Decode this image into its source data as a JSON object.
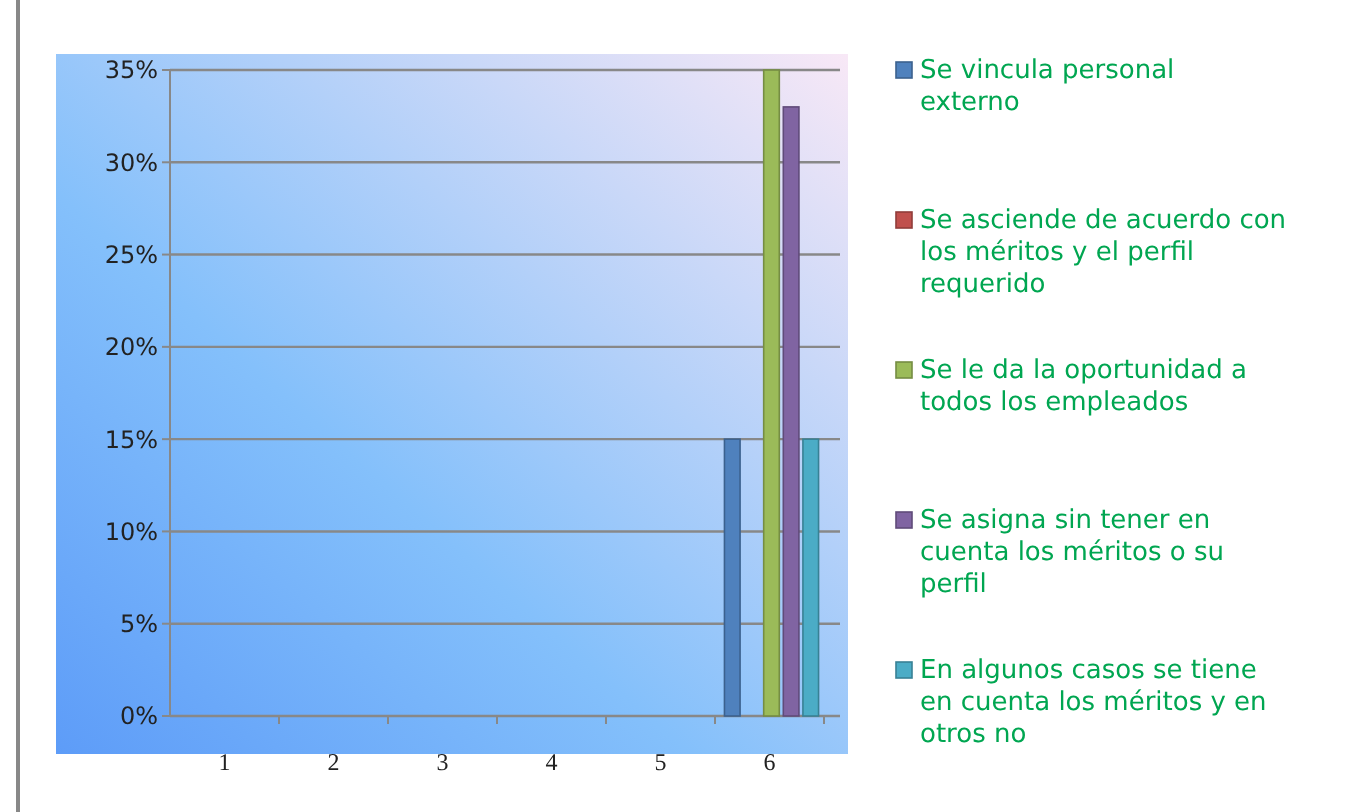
{
  "chart_data": {
    "type": "bar",
    "categories": [
      "1",
      "2",
      "3",
      "4",
      "5",
      "6"
    ],
    "series": [
      {
        "name": "Se vincula personal externo",
        "color": "#4f81bd",
        "values": [
          null,
          null,
          null,
          null,
          null,
          15
        ]
      },
      {
        "name": "Se asciende de acuerdo con los méritos y el perfil requerido",
        "color": "#c0504d",
        "values": [
          null,
          null,
          null,
          null,
          null,
          0
        ]
      },
      {
        "name": "Se le da la oportunidad a todos los empleados",
        "color": "#9bbb59",
        "values": [
          null,
          null,
          null,
          null,
          null,
          35
        ]
      },
      {
        "name": "Se asigna sin tener en cuenta los méritos o su perfil",
        "color": "#8064a2",
        "values": [
          null,
          null,
          null,
          null,
          null,
          33
        ]
      },
      {
        "name": "En algunos casos se tiene en cuenta los méritos y en otros no",
        "color": "#4bacc6",
        "values": [
          null,
          null,
          null,
          null,
          null,
          15
        ]
      }
    ],
    "ylim": [
      0,
      35
    ],
    "yticks": [
      {
        "value": 0,
        "label": "0%"
      },
      {
        "value": 5,
        "label": "5%"
      },
      {
        "value": 10,
        "label": "10%"
      },
      {
        "value": 15,
        "label": "15%"
      },
      {
        "value": 20,
        "label": "20%"
      },
      {
        "value": 25,
        "label": "25%"
      },
      {
        "value": 30,
        "label": "30%"
      },
      {
        "value": 35,
        "label": "35%"
      }
    ],
    "grid": "y",
    "legend": "right"
  }
}
